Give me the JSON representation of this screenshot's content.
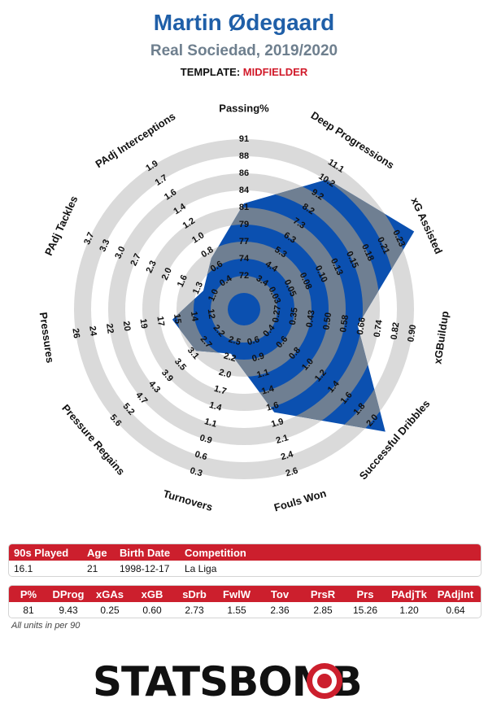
{
  "header": {
    "title": "Martin Ødegaard",
    "subtitle": "Real Sociedad, 2019/2020",
    "template_label": "TEMPLATE:",
    "template_value": "MIDFIELDER"
  },
  "colors": {
    "title": "#1f5fa8",
    "subtitle": "#6e7f8e",
    "accent_red": "#cc1f2d",
    "fill_primary": "#0b50b0",
    "fill_overlap": "#6f7f92",
    "ring_grey": "#dadada"
  },
  "chart_data": {
    "type": "radar",
    "rings": 5,
    "axes": [
      {
        "name": "Passing%",
        "ticks": [
          "72",
          "74",
          "77",
          "79",
          "81",
          "84",
          "86",
          "88",
          "91"
        ],
        "value": 81,
        "min": 70,
        "max": 91
      },
      {
        "name": "Deep Progressions",
        "ticks": [
          "3.4",
          "4.4",
          "5.3",
          "6.3",
          "7.3",
          "8.2",
          "9.2",
          "10.2",
          "11.1"
        ],
        "value": 9.43,
        "min": 2.4,
        "max": 11.1
      },
      {
        "name": "xG Assisted",
        "ticks": [
          "0.03",
          "0.05",
          "0.08",
          "0.10",
          "0.13",
          "0.15",
          "0.18",
          "0.21",
          "0.23"
        ],
        "value": 0.25,
        "min": 0.0,
        "max": 0.23
      },
      {
        "name": "xGBuildup",
        "ticks": [
          "0.27",
          "0.35",
          "0.43",
          "0.50",
          "0.58",
          "0.66",
          "0.74",
          "0.82",
          "0.90"
        ],
        "value": 0.6,
        "min": 0.19,
        "max": 0.9
      },
      {
        "name": "Successful Dribbles",
        "ticks": [
          "0.4",
          "0.6",
          "0.8",
          "1.0",
          "1.2",
          "1.4",
          "1.6",
          "1.8",
          "2.0"
        ],
        "value": 2.73,
        "min": 0.2,
        "max": 2.0
      },
      {
        "name": "Fouls Won",
        "ticks": [
          "0.6",
          "0.9",
          "1.1",
          "1.4",
          "1.6",
          "1.9",
          "2.1",
          "2.4",
          "2.6"
        ],
        "value": 1.55,
        "min": 0.35,
        "max": 2.6
      },
      {
        "name": "Turnovers",
        "ticks": [
          "2.5",
          "2.2",
          "2.0",
          "1.7",
          "1.4",
          "1.1",
          "0.9",
          "0.6",
          "0.3"
        ],
        "value": 2.36,
        "min": 2.8,
        "max": 0.3
      },
      {
        "name": "Pressure Regains",
        "ticks": [
          "2.2",
          "2.7",
          "3.1",
          "3.5",
          "3.9",
          "4.3",
          "4.7",
          "5.2",
          "5.6"
        ],
        "value": 2.85,
        "min": 1.8,
        "max": 5.6
      },
      {
        "name": "Pressures",
        "ticks": [
          "12",
          "14",
          "15",
          "17",
          "19",
          "20",
          "22",
          "24",
          "26"
        ],
        "value": 15.26,
        "min": 10,
        "max": 26
      },
      {
        "name": "PAdj Tackles",
        "ticks": [
          "1.0",
          "1.3",
          "1.6",
          "2.0",
          "2.3",
          "2.7",
          "3.0",
          "3.3",
          "3.7"
        ],
        "value": 1.2,
        "min": 0.7,
        "max": 3.7
      },
      {
        "name": "PAdj Interceptions",
        "ticks": [
          "0.4",
          "0.6",
          "0.8",
          "1.0",
          "1.2",
          "1.4",
          "1.6",
          "1.7",
          "1.9"
        ],
        "value": 0.64,
        "min": 0.2,
        "max": 1.9
      }
    ]
  },
  "info_table": {
    "headers": [
      "90s Played",
      "Age",
      "Birth Date",
      "Competition"
    ],
    "values": [
      "16.1",
      "21",
      "1998-12-17",
      "La Liga"
    ]
  },
  "stats_table": {
    "headers": [
      "P%",
      "DProg",
      "xGAs",
      "xGB",
      "sDrb",
      "FwlW",
      "Tov",
      "PrsR",
      "Prs",
      "PAdjTk",
      "PAdjInt"
    ],
    "values": [
      "81",
      "9.43",
      "0.25",
      "0.60",
      "2.73",
      "1.55",
      "2.36",
      "2.85",
      "15.26",
      "1.20",
      "0.64"
    ]
  },
  "footer": {
    "note": "All units in per 90",
    "logo": "STATSBOMB"
  }
}
